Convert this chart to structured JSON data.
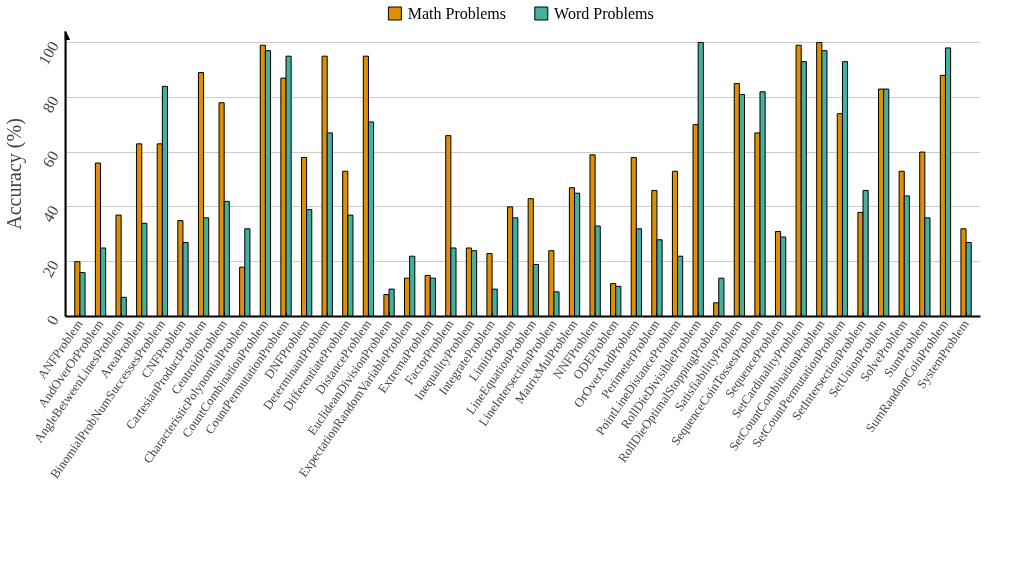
{
  "chart_data": {
    "type": "bar",
    "ylabel": "Accuracy (%)",
    "categories": [
      "ANFProblem",
      "AndOverOrProblem",
      "AngleBetweenLinesProblem",
      "AreaProblem",
      "BinomialProbNumSuccessesProblem",
      "CNFProblem",
      "CartesianProductProblem",
      "CentroidProblem",
      "CharacteristicPolynomialProblem",
      "CountCombinationProblem",
      "CountPermutationProblem",
      "DNFProblem",
      "DeterminantProblem",
      "DifferentiateProblem",
      "DistanceProblem",
      "EuclideanDivisionProblem",
      "ExpectationRandomVariableProblem",
      "ExtremaProblem",
      "FactorProblem",
      "InequalityProblem",
      "IntegrateProblem",
      "LimitProblem",
      "LineEquationProblem",
      "LineIntersectionProblem",
      "MatrixMulProblem",
      "NNFProblem",
      "ODEProblem",
      "OrOverAndProblem",
      "PerimeterProblem",
      "PointLineDistanceProblem",
      "RollDieDivisibleProblem",
      "RollDieOptimalStoppingProblem",
      "SatisfiabilityProblem",
      "SequenceCoinTossesProblem",
      "SequenceProblem",
      "SetCardinalityProblem",
      "SetCountCombinationProblem",
      "SetCountPermutationProblem",
      "SetIntersectionProblem",
      "SetUnionProblem",
      "SolveProblem",
      "SumProblem",
      "SumRandomCoinProblem",
      "SystemProblem"
    ],
    "series": [
      {
        "name": "Math Problems",
        "color": "#e08f00",
        "values": [
          20,
          56,
          37,
          63,
          63,
          35,
          89,
          78,
          18,
          99,
          87,
          58,
          95,
          53,
          95,
          8,
          14,
          15,
          66,
          25,
          23,
          40,
          43,
          24,
          47,
          59,
          12,
          58,
          46,
          53,
          70,
          5,
          85,
          67,
          31,
          99,
          100,
          74,
          38,
          83,
          53,
          60,
          88,
          32
        ]
      },
      {
        "name": "Word Problems",
        "color": "#45b0a0",
        "values": [
          16,
          25,
          7,
          34,
          84,
          27,
          36,
          42,
          32,
          97,
          95,
          39,
          67,
          37,
          71,
          10,
          22,
          14,
          25,
          24,
          10,
          36,
          19,
          9,
          45,
          33,
          11,
          32,
          28,
          22,
          100,
          14,
          81,
          82,
          29,
          93,
          97,
          93,
          46,
          83,
          44,
          36,
          98,
          27
        ]
      }
    ],
    "ylim": [
      0,
      104
    ],
    "yticks": [
      0,
      20,
      40,
      60,
      80,
      100
    ],
    "grid": "y",
    "legend": "top"
  }
}
